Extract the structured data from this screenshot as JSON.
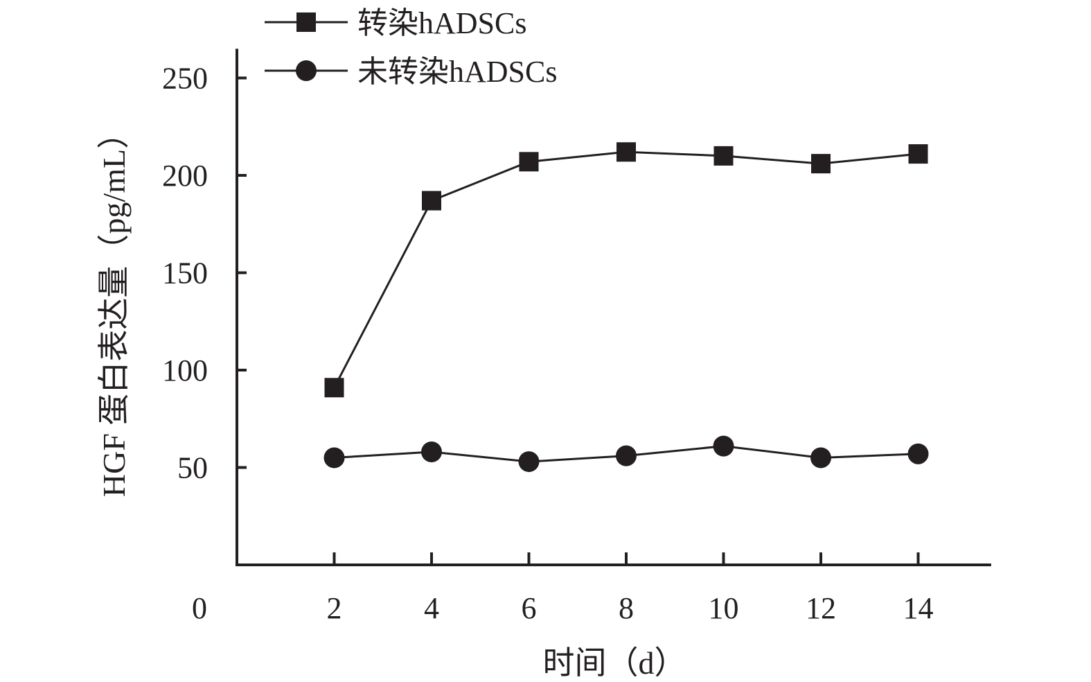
{
  "chart_data": {
    "type": "line",
    "title": "",
    "xlabel": "时间（d）",
    "ylabel": "HGF 蛋白表达量（pg/mL）",
    "x": [
      2,
      4,
      6,
      8,
      10,
      12,
      14
    ],
    "x_ticks": [
      "2",
      "4",
      "6",
      "8",
      "10",
      "12",
      "14"
    ],
    "origin_label": "0",
    "y_ticks": [
      "50",
      "100",
      "150",
      "200",
      "250"
    ],
    "y_tick_values": [
      50,
      100,
      150,
      200,
      250
    ],
    "xlim": [
      0,
      15.5
    ],
    "ylim": [
      0,
      265
    ],
    "grid": false,
    "legend_position": "top-center",
    "series": [
      {
        "name": "转染hADSCs",
        "marker": "square",
        "color": "#231f20",
        "values": [
          91,
          187,
          207,
          212,
          210,
          206,
          211
        ]
      },
      {
        "name": "未转染hADSCs",
        "marker": "circle",
        "color": "#231f20",
        "values": [
          55,
          58,
          53,
          56,
          61,
          55,
          57
        ]
      }
    ]
  }
}
